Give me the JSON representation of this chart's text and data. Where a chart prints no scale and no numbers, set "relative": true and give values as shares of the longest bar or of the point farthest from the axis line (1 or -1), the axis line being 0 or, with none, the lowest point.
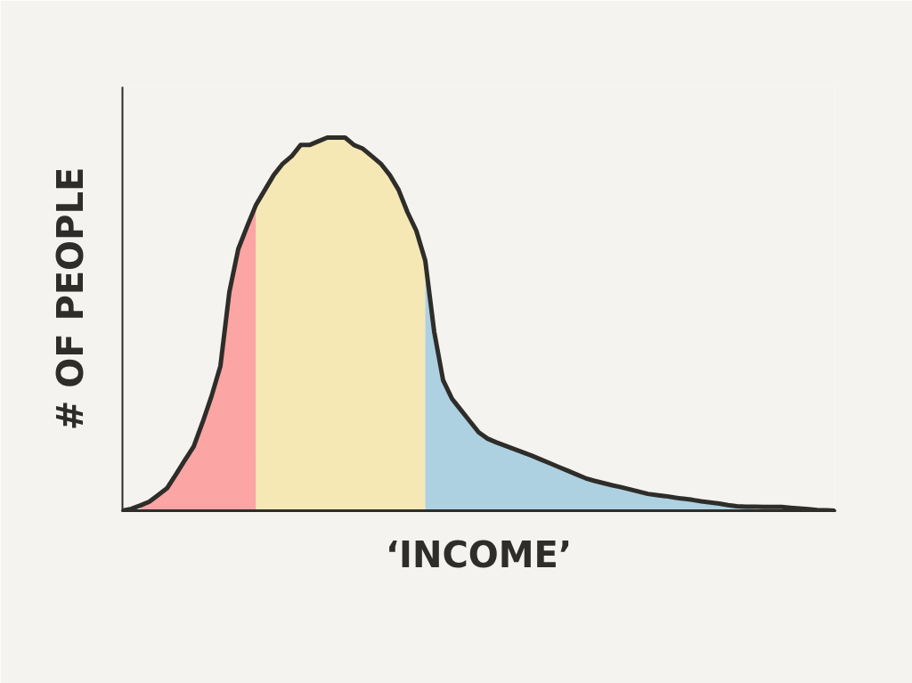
{
  "chart_data": {
    "type": "area",
    "xlabel": "‘INCOME’",
    "ylabel": "# OF PEOPLE",
    "relative": true,
    "categories": [
      null,
      null,
      null,
      null,
      null,
      null,
      null,
      null,
      null,
      null,
      null,
      null,
      null,
      null,
      null,
      null,
      null,
      null,
      null,
      null,
      null,
      null,
      null,
      null,
      null,
      null,
      null,
      null,
      null,
      null,
      null,
      null,
      null,
      null,
      null,
      null,
      null,
      null,
      null,
      null,
      null,
      null,
      null,
      null,
      null,
      null,
      null,
      null,
      null,
      null,
      null,
      null,
      null,
      null,
      null,
      null,
      null,
      null,
      null,
      null,
      null,
      null,
      null,
      null,
      null,
      null,
      null,
      null,
      null,
      null,
      null,
      null,
      null,
      null,
      null,
      null,
      null,
      null,
      null,
      null,
      null
    ],
    "series": [
      {
        "color": "#fba5a4",
        "values": [
          null,
          null,
          0.014,
          0.024,
          0.042,
          0.06,
          0.097,
          0.135,
          0.172,
          0.237,
          0.307,
          0.388,
          0.586,
          0.701,
          0.762,
          0.82,
          null,
          null,
          null,
          null,
          null,
          null,
          null,
          null,
          null,
          null,
          null,
          null,
          null,
          null,
          null,
          null,
          null,
          null,
          null,
          null,
          null,
          null,
          null,
          null,
          null,
          null,
          null,
          null,
          null,
          null,
          null,
          null,
          null,
          null,
          null,
          null,
          null,
          null,
          null,
          null,
          null,
          null,
          null,
          null,
          null,
          null,
          null,
          null,
          null,
          null,
          null,
          null,
          null,
          null,
          null,
          null,
          null,
          null,
          null,
          null,
          null,
          null,
          null,
          null,
          null
        ]
      },
      {
        "color": "#f5e8b5",
        "values": [
          null,
          null,
          null,
          null,
          null,
          null,
          null,
          null,
          null,
          null,
          null,
          null,
          null,
          null,
          null,
          0.82,
          0.86,
          0.9,
          0.93,
          0.95,
          0.98,
          0.98,
          0.99,
          1.0,
          1.0,
          1.0,
          0.98,
          0.97,
          0.95,
          0.93,
          0.9,
          0.86,
          0.8,
          0.75,
          0.67,
          null,
          null,
          null,
          null,
          null,
          null,
          null,
          null,
          null,
          null,
          null,
          null,
          null,
          null,
          null,
          null,
          null,
          null,
          null,
          null,
          null,
          null,
          null,
          null,
          null,
          null,
          null,
          null,
          null,
          null,
          null,
          null,
          null,
          null,
          null,
          null,
          null,
          null,
          null,
          null,
          null,
          null,
          null,
          null,
          null,
          null
        ]
      },
      {
        "color": "#aed1e1",
        "values": [
          null,
          null,
          null,
          null,
          null,
          null,
          null,
          null,
          null,
          null,
          null,
          null,
          null,
          null,
          null,
          null,
          null,
          null,
          null,
          null,
          null,
          null,
          null,
          null,
          null,
          null,
          null,
          null,
          null,
          null,
          null,
          null,
          null,
          null,
          0.67,
          0.48,
          0.35,
          0.3,
          0.27,
          0.24,
          0.21,
          0.193,
          0.183,
          0.174,
          0.165,
          0.156,
          0.147,
          0.137,
          0.127,
          0.117,
          0.107,
          0.097,
          0.087,
          0.08,
          0.074,
          0.068,
          0.063,
          0.057,
          0.051,
          0.045,
          0.042,
          0.039,
          0.035,
          0.032,
          0.029,
          0.025,
          0.022,
          0.019,
          0.015,
          0.012,
          0.011,
          0.011,
          null,
          null,
          null,
          null,
          null,
          null,
          null,
          null,
          null
        ]
      },
      {
        "type": "line",
        "color": "#2e2d29",
        "values": [
          0,
          0.005,
          0.014,
          0.024,
          0.042,
          0.06,
          0.097,
          0.135,
          0.172,
          0.237,
          0.307,
          0.388,
          0.586,
          0.701,
          0.762,
          0.82,
          0.86,
          0.9,
          0.93,
          0.95,
          0.98,
          0.98,
          0.99,
          1.0,
          1.0,
          1.0,
          0.98,
          0.97,
          0.95,
          0.93,
          0.9,
          0.86,
          0.8,
          0.75,
          0.67,
          0.48,
          0.35,
          0.3,
          0.27,
          0.24,
          0.21,
          0.193,
          0.183,
          0.174,
          0.165,
          0.156,
          0.147,
          0.137,
          0.127,
          0.117,
          0.107,
          0.097,
          0.087,
          0.08,
          0.074,
          0.068,
          0.063,
          0.057,
          0.051,
          0.045,
          0.042,
          0.039,
          0.035,
          0.032,
          0.029,
          0.025,
          0.022,
          0.019,
          0.015,
          0.012,
          0.011,
          0.011,
          0.01,
          0.01,
          0.01,
          0.008,
          0.006,
          0.004,
          0.002,
          0.001,
          0
        ]
      }
    ]
  }
}
